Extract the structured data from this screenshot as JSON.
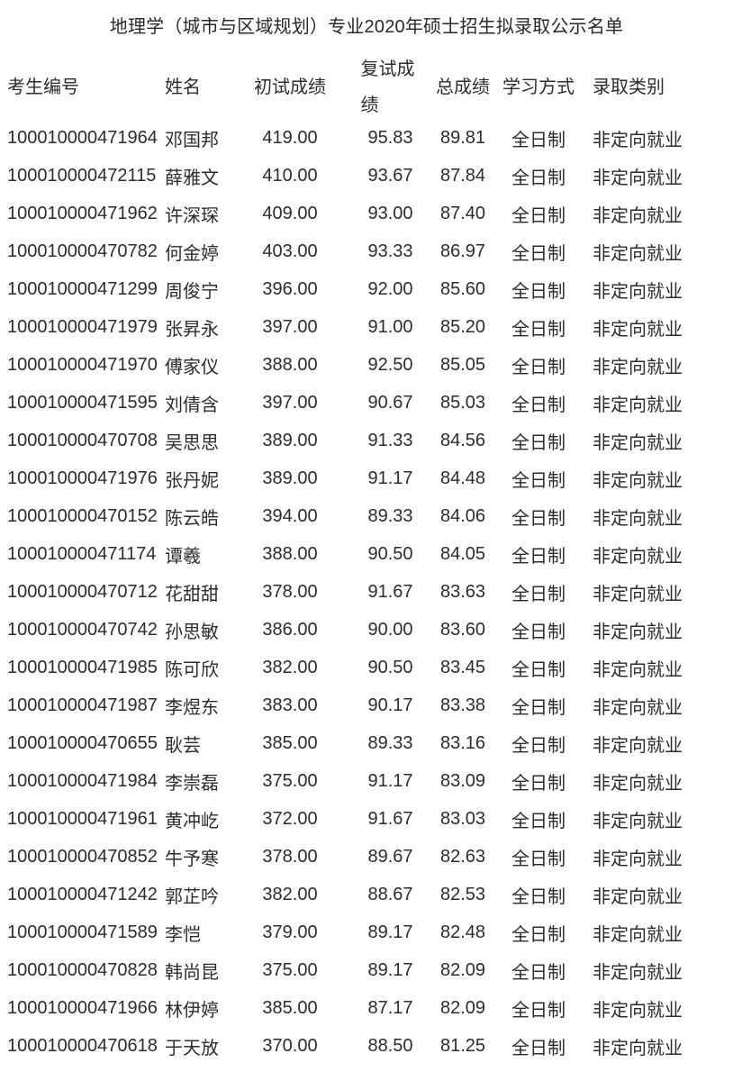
{
  "title": "地理学（城市与区域规划）专业2020年硕士招生拟录取公示名单",
  "table": {
    "columns": [
      {
        "key": "id",
        "label": "考生编号"
      },
      {
        "key": "name",
        "label": "姓名"
      },
      {
        "key": "initial",
        "label": "初试成绩"
      },
      {
        "key": "retest",
        "label": "复试成绩"
      },
      {
        "key": "total",
        "label": "总成绩"
      },
      {
        "key": "mode",
        "label": "学习方式"
      },
      {
        "key": "category",
        "label": "录取类别"
      }
    ],
    "rows": [
      {
        "id": "100010000471964",
        "name": "邓国邦",
        "initial": "419.00",
        "retest": "95.83",
        "total": "89.81",
        "mode": "全日制",
        "category": "非定向就业"
      },
      {
        "id": "100010000472115",
        "name": "薛雅文",
        "initial": "410.00",
        "retest": "93.67",
        "total": "87.84",
        "mode": "全日制",
        "category": "非定向就业"
      },
      {
        "id": "100010000471962",
        "name": "许深琛",
        "initial": "409.00",
        "retest": "93.00",
        "total": "87.40",
        "mode": "全日制",
        "category": "非定向就业"
      },
      {
        "id": "100010000470782",
        "name": "何金婷",
        "initial": "403.00",
        "retest": "93.33",
        "total": "86.97",
        "mode": "全日制",
        "category": "非定向就业"
      },
      {
        "id": "100010000471299",
        "name": "周俊宁",
        "initial": "396.00",
        "retest": "92.00",
        "total": "85.60",
        "mode": "全日制",
        "category": "非定向就业"
      },
      {
        "id": "100010000471979",
        "name": "张昇永",
        "initial": "397.00",
        "retest": "91.00",
        "total": "85.20",
        "mode": "全日制",
        "category": "非定向就业"
      },
      {
        "id": "100010000471970",
        "name": "傅家仪",
        "initial": "388.00",
        "retest": "92.50",
        "total": "85.05",
        "mode": "全日制",
        "category": "非定向就业"
      },
      {
        "id": "100010000471595",
        "name": "刘倩含",
        "initial": "397.00",
        "retest": "90.67",
        "total": "85.03",
        "mode": "全日制",
        "category": "非定向就业"
      },
      {
        "id": "100010000470708",
        "name": "吴思思",
        "initial": "389.00",
        "retest": "91.33",
        "total": "84.56",
        "mode": "全日制",
        "category": "非定向就业"
      },
      {
        "id": "100010000471976",
        "name": "张丹妮",
        "initial": "389.00",
        "retest": "91.17",
        "total": "84.48",
        "mode": "全日制",
        "category": "非定向就业"
      },
      {
        "id": "100010000470152",
        "name": "陈云皓",
        "initial": "394.00",
        "retest": "89.33",
        "total": "84.06",
        "mode": "全日制",
        "category": "非定向就业"
      },
      {
        "id": "100010000471174",
        "name": "谭羲",
        "initial": "388.00",
        "retest": "90.50",
        "total": "84.05",
        "mode": "全日制",
        "category": "非定向就业"
      },
      {
        "id": "100010000470712",
        "name": "花甜甜",
        "initial": "378.00",
        "retest": "91.67",
        "total": "83.63",
        "mode": "全日制",
        "category": "非定向就业"
      },
      {
        "id": "100010000470742",
        "name": "孙思敏",
        "initial": "386.00",
        "retest": "90.00",
        "total": "83.60",
        "mode": "全日制",
        "category": "非定向就业"
      },
      {
        "id": "100010000471985",
        "name": "陈可欣",
        "initial": "382.00",
        "retest": "90.50",
        "total": "83.45",
        "mode": "全日制",
        "category": "非定向就业"
      },
      {
        "id": "100010000471987",
        "name": "李煜东",
        "initial": "383.00",
        "retest": "90.17",
        "total": "83.38",
        "mode": "全日制",
        "category": "非定向就业"
      },
      {
        "id": "100010000470655",
        "name": "耿芸",
        "initial": "385.00",
        "retest": "89.33",
        "total": "83.16",
        "mode": "全日制",
        "category": "非定向就业"
      },
      {
        "id": "100010000471984",
        "name": "李崇磊",
        "initial": "375.00",
        "retest": "91.17",
        "total": "83.09",
        "mode": "全日制",
        "category": "非定向就业"
      },
      {
        "id": "100010000471961",
        "name": "黄冲屹",
        "initial": "372.00",
        "retest": "91.67",
        "total": "83.03",
        "mode": "全日制",
        "category": "非定向就业"
      },
      {
        "id": "100010000470852",
        "name": "牛予寒",
        "initial": "378.00",
        "retest": "89.67",
        "total": "82.63",
        "mode": "全日制",
        "category": "非定向就业"
      },
      {
        "id": "100010000471242",
        "name": "郭芷吟",
        "initial": "382.00",
        "retest": "88.67",
        "total": "82.53",
        "mode": "全日制",
        "category": "非定向就业"
      },
      {
        "id": "100010000471589",
        "name": "李恺",
        "initial": "379.00",
        "retest": "89.17",
        "total": "82.48",
        "mode": "全日制",
        "category": "非定向就业"
      },
      {
        "id": "100010000470828",
        "name": "韩尚昆",
        "initial": "375.00",
        "retest": "89.17",
        "total": "82.09",
        "mode": "全日制",
        "category": "非定向就业"
      },
      {
        "id": "100010000471966",
        "name": "林伊婷",
        "initial": "385.00",
        "retest": "87.17",
        "total": "82.09",
        "mode": "全日制",
        "category": "非定向就业"
      },
      {
        "id": "100010000470618",
        "name": "于天放",
        "initial": "370.00",
        "retest": "88.50",
        "total": "81.25",
        "mode": "全日制",
        "category": "非定向就业"
      }
    ]
  }
}
